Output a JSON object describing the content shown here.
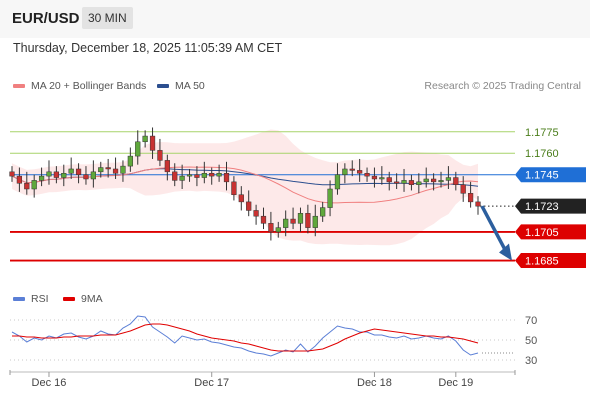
{
  "header": {
    "symbol": "EUR/USD",
    "timeframe": "30 MIN"
  },
  "datetime": "Thursday, December 18, 2025 11:05:39 AM CET",
  "legend": {
    "ma20": {
      "label": "MA 20 + Bollinger Bands",
      "color": "#f08080"
    },
    "ma50": {
      "label": "MA 50",
      "color": "#2c4f8f"
    },
    "credit": "Research © 2025 Trading Central"
  },
  "rsi_legend": {
    "rsi": {
      "label": "RSI",
      "color": "#5b7fd6"
    },
    "ma": {
      "label": "9MA",
      "color": "#e00000"
    }
  },
  "chart_data": [
    {
      "type": "line",
      "y_range": [
        1.167,
        1.18
      ],
      "x_ticks": [
        "Dec 16",
        "Dec 17",
        "Dec 18",
        "Dec 19"
      ],
      "levels": [
        {
          "value": 1.1775,
          "label": "1.1775",
          "kind": "resistance",
          "color": "#a7d46a"
        },
        {
          "value": 1.176,
          "label": "1.1760",
          "kind": "resistance",
          "color": "#a7d46a"
        },
        {
          "value": 1.1745,
          "label": "1.1745",
          "kind": "pivot",
          "color": "#1f6fd6"
        },
        {
          "value": 1.1723,
          "label": "1.1723",
          "kind": "last-price",
          "color": "#222222"
        },
        {
          "value": 1.1705,
          "label": "1.1705",
          "kind": "target",
          "color": "#dd0000"
        },
        {
          "value": 1.1685,
          "label": "1.1685",
          "kind": "target",
          "color": "#dd0000"
        }
      ],
      "close_series": [
        1.1744,
        1.1739,
        1.1735,
        1.1741,
        1.1744,
        1.1747,
        1.1743,
        1.1746,
        1.1749,
        1.1745,
        1.1742,
        1.1747,
        1.175,
        1.1749,
        1.1746,
        1.1751,
        1.1758,
        1.1768,
        1.1772,
        1.1762,
        1.1755,
        1.1747,
        1.1741,
        1.1744,
        1.1745,
        1.1743,
        1.1746,
        1.1744,
        1.1746,
        1.174,
        1.1731,
        1.1726,
        1.172,
        1.1716,
        1.1711,
        1.1705,
        1.1708,
        1.1714,
        1.1711,
        1.1718,
        1.1708,
        1.1716,
        1.1722,
        1.1735,
        1.1745,
        1.1749,
        1.1748,
        1.1746,
        1.1744,
        1.1742,
        1.1743,
        1.174,
        1.1739,
        1.1741,
        1.1738,
        1.174,
        1.1742,
        1.174,
        1.1741,
        1.1743,
        1.1738,
        1.1732,
        1.1726,
        1.1723
      ]
    },
    {
      "type": "line",
      "y_range": [
        20,
        80
      ],
      "y_ticks": [
        70,
        50,
        30
      ],
      "series": [
        {
          "name": "RSI",
          "values": [
            58,
            54,
            48,
            52,
            50,
            54,
            52,
            56,
            57,
            53,
            51,
            54,
            59,
            56,
            55,
            62,
            66,
            74,
            73,
            63,
            58,
            53,
            47,
            54,
            52,
            50,
            51,
            48,
            47,
            45,
            43,
            42,
            39,
            37,
            36,
            34,
            37,
            40,
            38,
            46,
            38,
            44,
            52,
            58,
            64,
            62,
            61,
            58,
            58,
            55,
            55,
            53,
            52,
            54,
            51,
            52,
            54,
            52,
            51,
            54,
            49,
            40,
            35,
            37
          ]
        },
        {
          "name": "9MA",
          "values": [
            54,
            54,
            53,
            53,
            52,
            52,
            52,
            53,
            53,
            54,
            54,
            54,
            55,
            55,
            55,
            57,
            59,
            62,
            65,
            66,
            66,
            65,
            63,
            61,
            59,
            56,
            54,
            52,
            51,
            50,
            49,
            47,
            46,
            44,
            42,
            40,
            39,
            39,
            39,
            39,
            39,
            40,
            41,
            44,
            47,
            51,
            54,
            57,
            59,
            61,
            60,
            59,
            58,
            57,
            56,
            55,
            54,
            54,
            53,
            53,
            52,
            51,
            49,
            47
          ]
        }
      ]
    }
  ]
}
